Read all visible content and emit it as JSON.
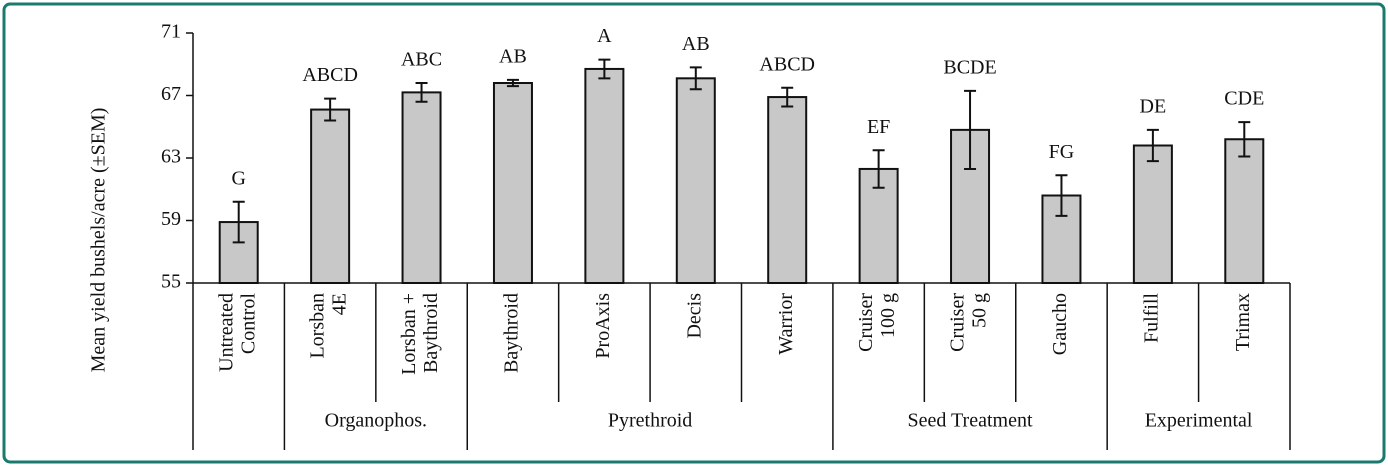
{
  "chart_data": {
    "type": "bar",
    "y_label": "Mean yield bushels/acre (±SEM)",
    "categories": [
      [
        "Untreated",
        "Control"
      ],
      [
        "Lorsban",
        "4E"
      ],
      [
        "Lorsban +",
        "Baythroid"
      ],
      [
        "Baythroid"
      ],
      [
        "ProAxis"
      ],
      [
        "Decis"
      ],
      [
        "Warrior"
      ],
      [
        "Cruiser",
        "100 g"
      ],
      [
        "Cruiser",
        "50 g"
      ],
      [
        "Gaucho"
      ],
      [
        "Fulfill"
      ],
      [
        "Trimax"
      ]
    ],
    "values": [
      58.9,
      66.1,
      67.2,
      67.8,
      68.7,
      68.1,
      66.9,
      62.3,
      64.8,
      60.6,
      63.8,
      64.2
    ],
    "errors": [
      1.3,
      0.7,
      0.6,
      0.2,
      0.6,
      0.7,
      0.6,
      1.2,
      2.5,
      1.3,
      1.0,
      1.1
    ],
    "letters": [
      "G",
      "ABCD",
      "ABC",
      "AB",
      "A",
      "AB",
      "ABCD",
      "EF",
      "BCDE",
      "FG",
      "DE",
      "CDE"
    ],
    "groups": [
      {
        "name": null,
        "size": 1
      },
      {
        "name": "Organophos.",
        "size": 2
      },
      {
        "name": "Pyrethroid",
        "size": 4
      },
      {
        "name": "Seed Treatment",
        "size": 3
      },
      {
        "name": "Experimental",
        "size": 2
      }
    ],
    "color": "#c8c8c8",
    "ylim": [
      55,
      71
    ],
    "yticks": [
      55,
      59,
      63,
      67,
      71
    ]
  }
}
